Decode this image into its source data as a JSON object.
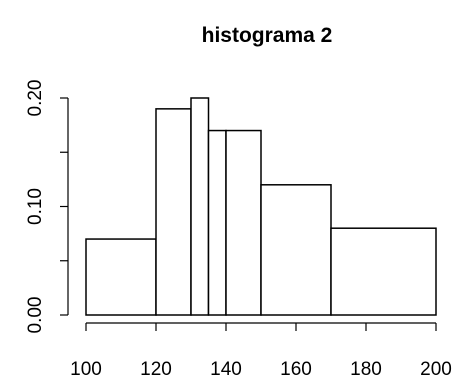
{
  "chart_data": {
    "type": "bar",
    "title": "histograma 2",
    "xlabel": "",
    "ylabel": "",
    "bins": [
      {
        "start": 100,
        "end": 120,
        "density": 0.07
      },
      {
        "start": 120,
        "end": 130,
        "density": 0.19
      },
      {
        "start": 130,
        "end": 135,
        "density": 0.2
      },
      {
        "start": 135,
        "end": 140,
        "density": 0.17
      },
      {
        "start": 140,
        "end": 150,
        "density": 0.17
      },
      {
        "start": 150,
        "end": 170,
        "density": 0.12
      },
      {
        "start": 170,
        "end": 200,
        "density": 0.08
      }
    ],
    "xlim": [
      100,
      200
    ],
    "ylim": [
      0,
      0.2
    ],
    "x_ticks": [
      100,
      120,
      140,
      160,
      180,
      200
    ],
    "x_tick_labels": [
      "100",
      "120",
      "140",
      "160",
      "180",
      "200"
    ],
    "y_ticks": [
      0,
      0.05,
      0.1,
      0.15,
      0.2
    ],
    "y_tick_labels": [
      "0.00",
      "",
      "0.10",
      "",
      "0.20"
    ],
    "grid": false,
    "legend": "none",
    "colors": {
      "bar_fill": "#ffffff",
      "bar_stroke": "#000000",
      "background": "#ffffff"
    }
  }
}
